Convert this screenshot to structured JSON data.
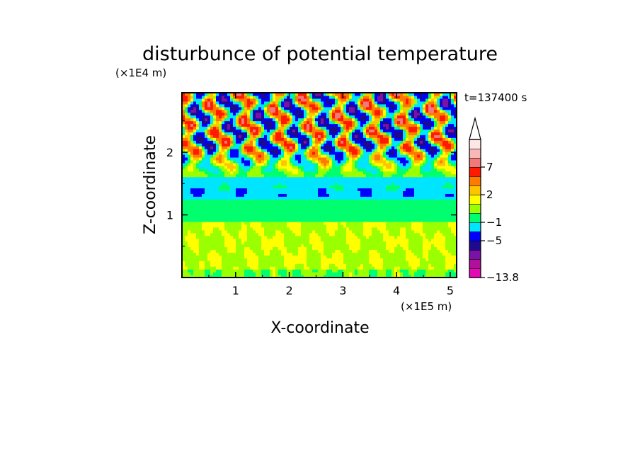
{
  "chart_data": {
    "type": "heatmap",
    "title": "disturbunce of potential temperature",
    "xlabel": "X-coordinate",
    "ylabel": "Z-coordinate",
    "x_unit": "(×1E5 m)",
    "y_unit": "(×1E4 m)",
    "time_label": "t=137400 s",
    "xlim": [
      0,
      5.12
    ],
    "ylim": [
      0,
      2.95
    ],
    "x_ticks": [
      1,
      2,
      3,
      4,
      5
    ],
    "y_ticks": [
      1,
      2
    ],
    "x_tick_labels": [
      "1",
      "2",
      "3",
      "4",
      "5"
    ],
    "y_tick_labels": [
      "1",
      "2"
    ],
    "grid": false,
    "colorbar": {
      "levels": [
        -13.8,
        -11,
        -9,
        -7,
        -5,
        -3,
        -1,
        0,
        1,
        2,
        3,
        5,
        7,
        9,
        11
      ],
      "colors": [
        "#e40ab6",
        "#b0109a",
        "#7a12a8",
        "#1e0a8e",
        "#0000ff",
        "#00e5ff",
        "#00ff6e",
        "#9aff00",
        "#ffff00",
        "#ffc400",
        "#ff7a00",
        "#ff1a00",
        "#f07a7a",
        "#f8b8b8",
        "#fde6e6"
      ],
      "tick_labels": [
        "7",
        "2",
        "−1",
        "−5",
        "−13.8"
      ],
      "tick_values": [
        7,
        2,
        -1,
        -5,
        -13.8
      ],
      "extend": "max"
    },
    "field_summary": [
      {
        "z_range": [
          0,
          0.9
        ],
        "approx_value": "0 to 2",
        "note": "yellow/orange band with green streaks near ground"
      },
      {
        "z_range": [
          0.9,
          1.25
        ],
        "approx_value": "-1 to 0",
        "note": "green band"
      },
      {
        "z_range": [
          1.25,
          1.6
        ],
        "approx_value": "-3 to -1",
        "note": "cyan band with blue streaks"
      },
      {
        "z_range": [
          1.6,
          2.95
        ],
        "approx_value": "-9 to 9",
        "note": "wave pattern of alternating orange/red and blue cells"
      }
    ]
  }
}
